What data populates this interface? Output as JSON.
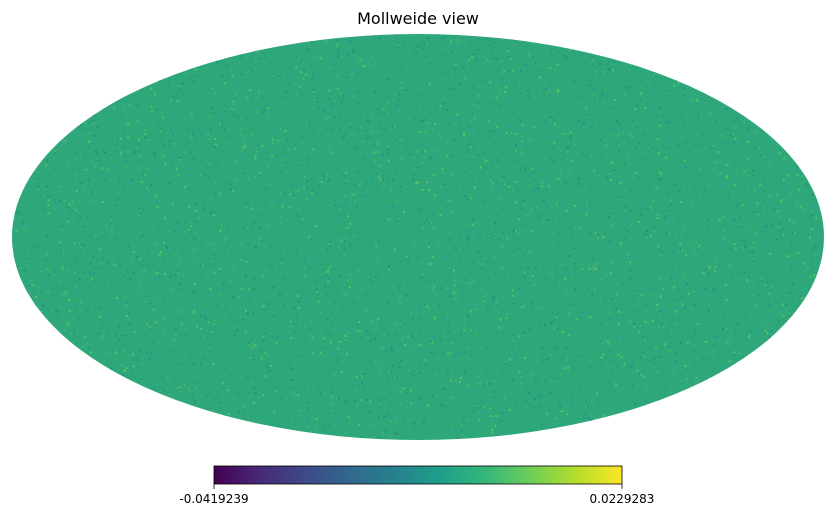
{
  "chart_data": {
    "type": "heatmap",
    "projection": "mollweide",
    "title": "Mollweide view",
    "colormap": "viridis",
    "colormap_stops": [
      "#440154",
      "#482878",
      "#3e4989",
      "#31688e",
      "#26828e",
      "#1f9e89",
      "#35b779",
      "#6ece58",
      "#b5de2b",
      "#fde725"
    ],
    "map_fill_color": "#2ea77b",
    "noise_colors": [
      "#2fa57a",
      "#36ad78",
      "#27987e",
      "#3fb370",
      "#24927f",
      "#49b76a",
      "#2a9c7e",
      "#5ec05f"
    ],
    "colorbar": {
      "orientation": "horizontal",
      "min": -0.0419239,
      "max": 0.0229283,
      "min_label": "-0.0419239",
      "max_label": "0.0229283"
    }
  }
}
